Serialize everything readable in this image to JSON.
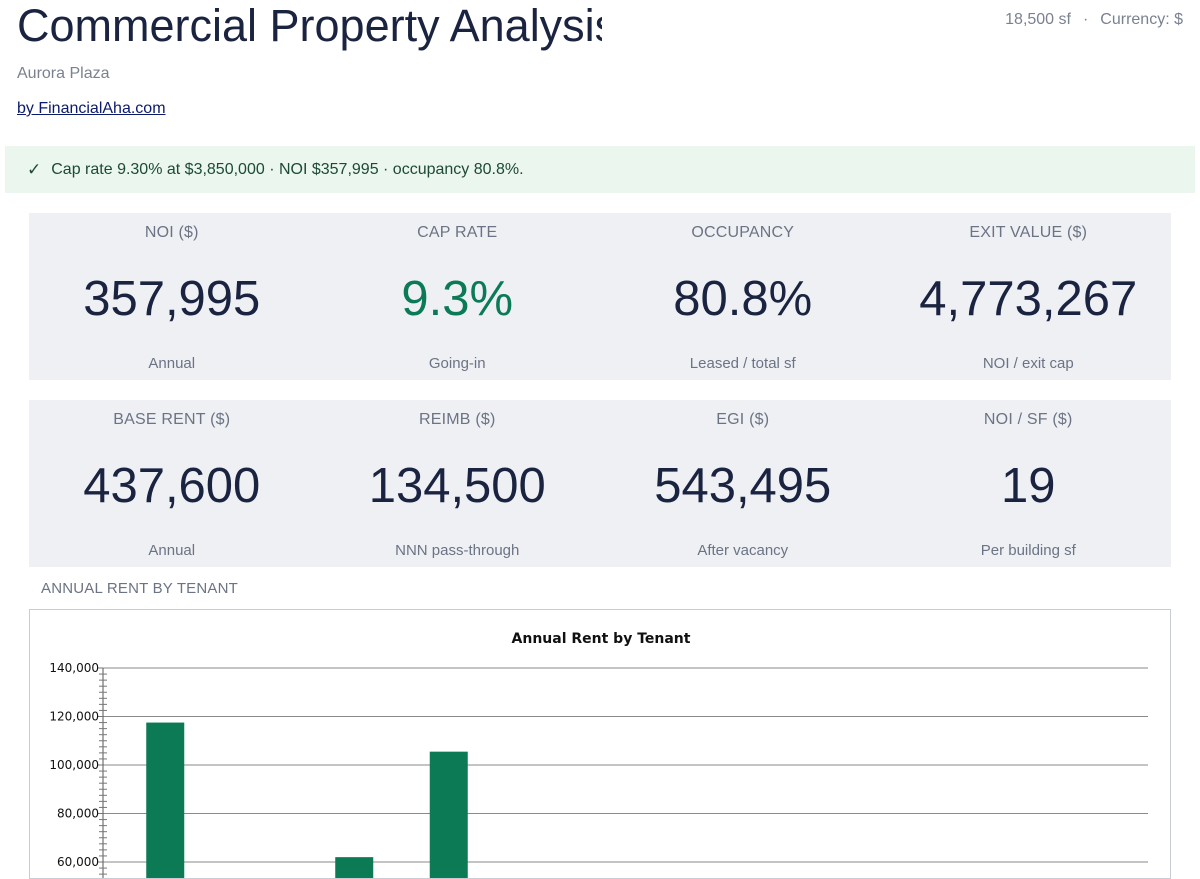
{
  "header": {
    "title": "Commercial Property Analysis",
    "property_name": "Aurora Plaza",
    "byline": "by FinancialAha.com",
    "building_sf": "18,500 sf",
    "separator": "·",
    "currency": "Currency: $"
  },
  "banner": {
    "check_icon": "✓",
    "message": "Cap rate 9.30% at $3,850,000 · NOI $357,995 · occupancy 80.8%."
  },
  "kpis_row1": [
    {
      "label": "NOI ($)",
      "value": "357,995",
      "sub": "Annual"
    },
    {
      "label": "CAP RATE",
      "value": "9.3%",
      "sub": "Going-in"
    },
    {
      "label": "OCCUPANCY",
      "value": "80.8%",
      "sub": "Leased / total sf"
    },
    {
      "label": "EXIT VALUE ($)",
      "value": "4,773,267",
      "sub": "NOI / exit cap"
    }
  ],
  "kpis_row2": [
    {
      "label": "BASE RENT ($)",
      "value": "437,600",
      "sub": "Annual"
    },
    {
      "label": "REIMB ($)",
      "value": "134,500",
      "sub": "NNN pass-through"
    },
    {
      "label": "EGI ($)",
      "value": "543,495",
      "sub": "After vacancy"
    },
    {
      "label": "NOI / SF ($)",
      "value": "19",
      "sub": "Per building sf"
    }
  ],
  "colors": {
    "accent": "#0b7a55",
    "bar": "#0b7a55",
    "banner_bg": "#eaf6ee",
    "card_bg": "#eef0f4"
  },
  "section": {
    "chart_label": "ANNUAL RENT BY TENANT"
  },
  "chart_data": {
    "type": "bar",
    "title": "Annual Rent by Tenant",
    "xlabel": "",
    "ylabel": "",
    "ylim": [
      0,
      140000
    ],
    "yticks": [
      140000,
      120000,
      100000,
      80000,
      60000
    ],
    "ytick_labels": [
      "140,000",
      "120,000",
      "100,000",
      "80,000",
      "60,000"
    ],
    "values": [
      117500,
      null,
      62000,
      105500
    ],
    "grid": true
  }
}
